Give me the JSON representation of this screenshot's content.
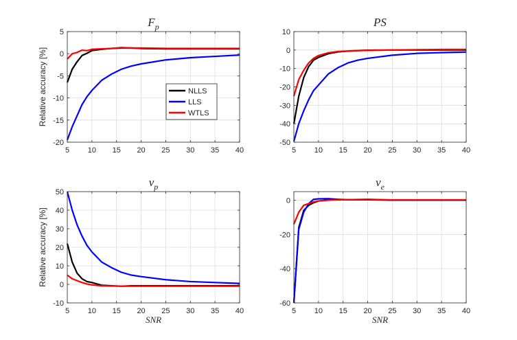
{
  "figure": {
    "legend": [
      {
        "label": "NLLS",
        "color": "#000000"
      },
      {
        "label": "LLS",
        "color": "#0000ff"
      },
      {
        "label": "WTLS",
        "color": "#ff0000"
      }
    ],
    "grid": true
  },
  "chart_data": [
    {
      "type": "line",
      "title_base": "F",
      "title_sub": "p",
      "xlabel": "",
      "ylabel": "Relative accuracy [%]",
      "xlim": [
        5,
        40
      ],
      "ylim": [
        -20,
        5
      ],
      "xticks": [
        5,
        10,
        15,
        20,
        25,
        30,
        35,
        40
      ],
      "yticks": [
        -20,
        -15,
        -10,
        -5,
        0,
        5
      ],
      "x": [
        5,
        6,
        7,
        8,
        9,
        10,
        12,
        14,
        16,
        18,
        20,
        25,
        30,
        35,
        40
      ],
      "series": [
        {
          "name": "NLLS",
          "color": "#000000",
          "values": [
            -6.5,
            -3.5,
            -1.8,
            -0.4,
            0.1,
            0.7,
            1.0,
            1.2,
            1.3,
            1.3,
            1.2,
            1.1,
            1.1,
            1.1,
            1.1
          ]
        },
        {
          "name": "LLS",
          "color": "#0000ff",
          "values": [
            -19.5,
            -16.5,
            -14,
            -11.5,
            -9.7,
            -8.3,
            -6,
            -4.6,
            -3.5,
            -2.8,
            -2.3,
            -1.4,
            -0.9,
            -0.6,
            -0.3
          ]
        },
        {
          "name": "WTLS",
          "color": "#ff0000",
          "values": [
            -1.2,
            0.0,
            0.3,
            0.8,
            0.7,
            1.0,
            1.1,
            1.2,
            1.4,
            1.3,
            1.3,
            1.2,
            1.2,
            1.2,
            1.2
          ]
        }
      ],
      "legend": true
    },
    {
      "type": "line",
      "title_base": "PS",
      "title_sub": "",
      "xlabel": "",
      "ylabel": "",
      "xlim": [
        5,
        40
      ],
      "ylim": [
        -50,
        10
      ],
      "xticks": [
        5,
        10,
        15,
        20,
        25,
        30,
        35,
        40
      ],
      "yticks": [
        -50,
        -40,
        -30,
        -20,
        -10,
        0,
        10
      ],
      "x": [
        5,
        6,
        7,
        8,
        9,
        10,
        12,
        14,
        16,
        18,
        20,
        25,
        30,
        35,
        40
      ],
      "series": [
        {
          "name": "NLLS",
          "color": "#000000",
          "values": [
            -40,
            -25,
            -15,
            -9,
            -5.5,
            -4,
            -2,
            -1,
            -0.6,
            -0.3,
            -0.1,
            0.0,
            0.0,
            0.0,
            0.0
          ]
        },
        {
          "name": "LLS",
          "color": "#0000ff",
          "values": [
            -49.5,
            -40,
            -33,
            -27,
            -22,
            -19,
            -13,
            -9.5,
            -7,
            -5.5,
            -4.5,
            -2.8,
            -1.8,
            -1.4,
            -1.1
          ]
        },
        {
          "name": "WTLS",
          "color": "#ff0000",
          "values": [
            -25,
            -16,
            -11,
            -7,
            -4.5,
            -3,
            -1.5,
            -0.8,
            -0.5,
            -0.3,
            -0.2,
            0.0,
            0.2,
            0.3,
            0.3
          ]
        }
      ],
      "legend": false
    },
    {
      "type": "line",
      "title_base": "v",
      "title_sub": "p",
      "xlabel": "SNR",
      "ylabel": "Relative accuracy [%]",
      "xlim": [
        5,
        40
      ],
      "ylim": [
        -10,
        50
      ],
      "xticks": [
        5,
        10,
        15,
        20,
        25,
        30,
        35,
        40
      ],
      "yticks": [
        -10,
        0,
        10,
        20,
        30,
        40,
        50
      ],
      "x": [
        5,
        6,
        7,
        8,
        9,
        10,
        12,
        14,
        16,
        18,
        20,
        25,
        30,
        35,
        40
      ],
      "series": [
        {
          "name": "NLLS",
          "color": "#000000",
          "values": [
            22,
            12,
            6,
            3,
            1.5,
            1.0,
            -0.5,
            -0.8,
            -1.0,
            -0.8,
            -0.8,
            -0.8,
            -0.8,
            -0.8,
            -0.8
          ]
        },
        {
          "name": "LLS",
          "color": "#0000ff",
          "values": [
            50,
            40,
            32,
            26,
            21,
            17.5,
            12,
            9,
            6.5,
            5,
            4.2,
            2.5,
            1.5,
            1.0,
            0.5
          ]
        },
        {
          "name": "WTLS",
          "color": "#ff0000",
          "values": [
            5,
            3,
            2,
            1,
            0.2,
            -0.3,
            -0.8,
            -0.9,
            -1.0,
            -1.0,
            -1.0,
            -1.0,
            -1.0,
            -1.0,
            -1.0
          ]
        }
      ],
      "legend": false
    },
    {
      "type": "line",
      "title_base": "v",
      "title_sub": "e",
      "xlabel": "SNR",
      "ylabel": "",
      "xlim": [
        5,
        40
      ],
      "ylim": [
        -60,
        5
      ],
      "xticks": [
        5,
        10,
        15,
        20,
        25,
        30,
        35,
        40
      ],
      "yticks": [
        -60,
        -40,
        -20,
        0
      ],
      "x": [
        5,
        6,
        7,
        8,
        9,
        10,
        12,
        14,
        16,
        18,
        20,
        25,
        30,
        35,
        40
      ],
      "series": [
        {
          "name": "NLLS",
          "color": "#000000",
          "values": [
            -60,
            -16,
            -6,
            -3,
            -1.5,
            -0.5,
            0.2,
            0.3,
            0.2,
            0.2,
            0.2,
            0.0,
            0.0,
            0.0,
            0.0
          ]
        },
        {
          "name": "LLS",
          "color": "#0000ff",
          "values": [
            -60,
            -17,
            -7,
            -2,
            0.5,
            0.8,
            0.9,
            0.5,
            0.3,
            0.4,
            0.5,
            0.1,
            0.1,
            0.1,
            0.1
          ]
        },
        {
          "name": "WTLS",
          "color": "#ff0000",
          "values": [
            -14,
            -7,
            -3,
            -2,
            -1,
            -0.5,
            0.0,
            0.2,
            0.3,
            0.3,
            0.3,
            0.2,
            0.2,
            0.2,
            0.2
          ]
        }
      ],
      "legend": false
    }
  ]
}
